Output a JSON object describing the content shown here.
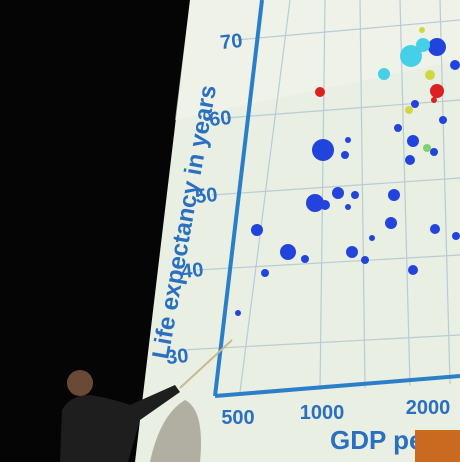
{
  "screen": {
    "y_axis_label": "Life expectancy in years",
    "y_ticks": [
      70,
      60,
      50,
      40,
      30
    ],
    "x_ticks": [
      500,
      1000,
      2000
    ],
    "x_axis_label": "GDP per"
  }
}
